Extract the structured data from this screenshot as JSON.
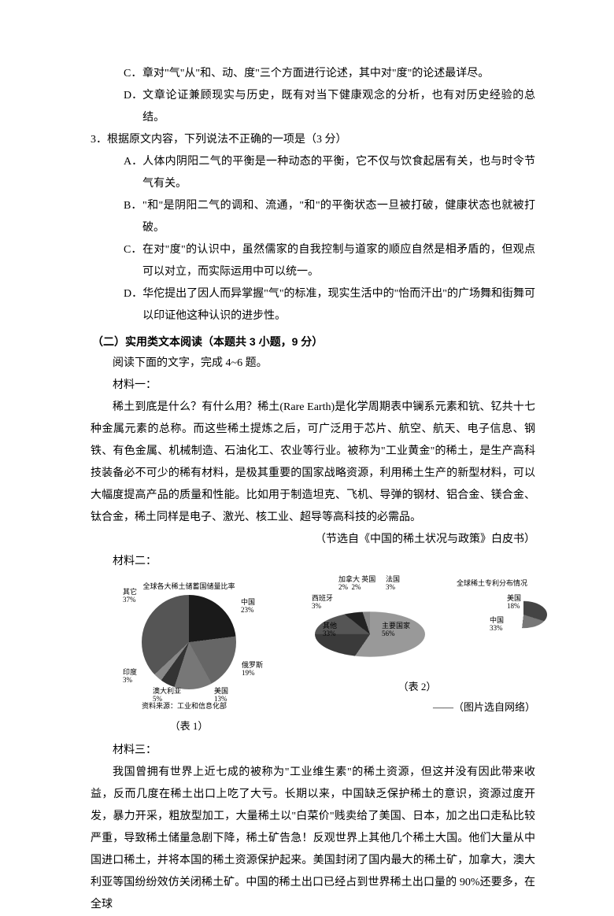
{
  "options_block1": {
    "C": "章对\"气\"从\"和、动、度\"三个方面进行论述，其中对\"度\"的论述最详尽。",
    "D": "文章论证兼顾现实与历史，既有对当下健康观念的分析，也有对历史经验的总结。"
  },
  "q3": {
    "num": "3．",
    "stem": "根据原文内容，下列说法不正确的一项是（3 分）",
    "A": "人体内阴阳二气的平衡是一种动态的平衡，它不仅与饮食起居有关，也与时令节气有关。",
    "B": "\"和\"是阴阳二气的调和、流通，\"和\"的平衡状态一旦被打破，健康状态也就被打破。",
    "C": "在对\"度\"的认识中，虽然儒家的自我控制与道家的顺应自然是相矛盾的，但观点可以对立，而实际运用中可以统一。",
    "D": "华佗提出了因人而异掌握\"气\"的标准，现实生活中的\"怡而汗出\"的广场舞和街舞可以印证他这种认识的进步性。"
  },
  "section2_title": "（二）实用类文本阅读（本题共 3 小题，9 分）",
  "section2_instr": "阅读下面的文字，完成 4~6 题。",
  "mat1_label": "材料一：",
  "mat1_body": "稀土到底是什么？有什么用？稀土(Rare Earth)是化学周期表中镧系元素和钪、钇共十七种金属元素的总称。而这些稀土提炼之后，可广泛用于芯片、航空、航天、电子信息、钢铁、有色金属、机械制造、石油化工、农业等行业。被称为\"工业黄金\"的稀土，是生产高科技装备必不可少的稀有材料，是极其重要的国家战略资源，利用稀土生产的新型材料，可以大幅度提高产品的质量和性能。比如用于制造坦克、飞机、导弹的钢材、铝合金、镁合金、钛合金，稀土同样是电子、激光、核工业、超导等高科技的必需品。",
  "mat1_source": "（节选自《中国的稀土状况与政策》白皮书）",
  "mat2_label": "材料二：",
  "chart1": {
    "title": "全球各大稀土储蓄国储量比率",
    "labels": {
      "other": "其它\n37%",
      "china": "中国\n23%",
      "russia": "俄罗斯\n19%",
      "usa": "美国\n13%",
      "aus": "澳大利亚\n5%",
      "india": "印度\n3%"
    },
    "source": "资料来源：工业和信息化部",
    "caption": "（表 1）"
  },
  "chart2": {
    "title": "全球稀土专利分布情况",
    "labels": {
      "france": "法国\n3%",
      "uk": "加拿大 英国\n2%  2%",
      "spain": "西班牙\n3%",
      "other": "其他\n33%",
      "main": "主要国家\n56%",
      "usa": "美国\n18%",
      "cn": "中国\n33%"
    },
    "caption": "（表 2）",
    "source": "——（图片选自网络）"
  },
  "mat3_label": "材料三：",
  "mat3_body": "我国曾拥有世界上近七成的被称为\"工业维生素\"的稀土资源，但这并没有因此带来收益，反而几度在稀土出口上吃了大亏。长期以来，中国缺乏保护稀土的意识，资源过度开发，暴力开采，粗放型加工，大量稀土以\"白菜价\"贱卖给了美国、日本，加之出口走私比较严重，导致稀土储量急剧下降，稀土矿告急！反观世界上其他几个稀土大国。他们大量从中国进口稀土，并将本国的稀土资源保护起来。美国封闭了国内最大的稀土矿，加拿大，澳大利亚等国纷纷效仿关闭稀土矿。中国的稀土出口已经占到世界稀土出口量的 90%还要多，在全球"
}
